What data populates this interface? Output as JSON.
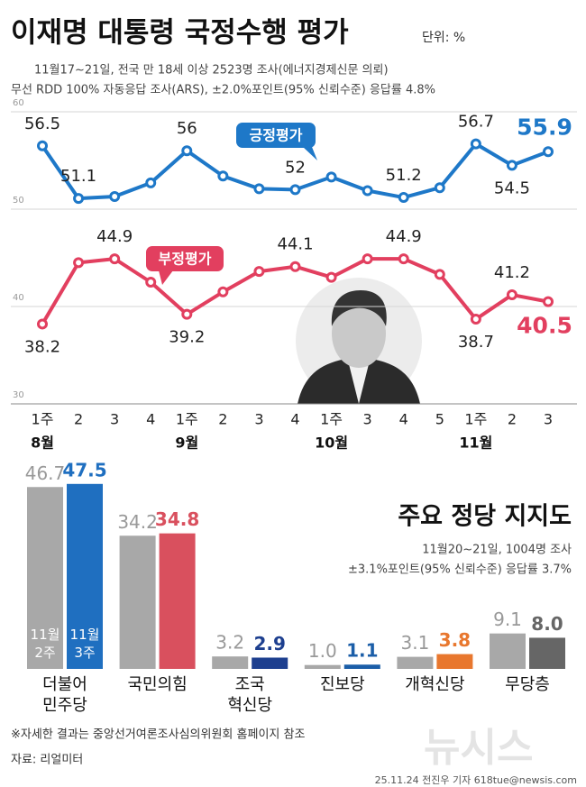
{
  "header": {
    "title": "이재명 대통령 국정수행 평가",
    "unit": "단위: %",
    "notes": [
      "11월17~21일, 전국 만 18세 이상 2523명 조사(에너지경제신문 의뢰)",
      "무선 RDD 100% 자동응답 조사(ARS), ±2.0%포인트(95% 신뢰수준) 응답률 4.8%"
    ]
  },
  "chart_data": [
    {
      "type": "line",
      "categories": [
        "1주",
        "2",
        "3",
        "4",
        "1주",
        "2",
        "3",
        "4",
        "1주",
        "3",
        "4",
        "5",
        "1주",
        "2",
        "3"
      ],
      "month_labels": [
        "8월",
        null,
        null,
        null,
        "9월",
        null,
        null,
        null,
        "10월",
        null,
        null,
        null,
        "11월",
        null,
        null
      ],
      "ylim": [
        30,
        60
      ],
      "yticks": [
        30,
        40,
        50,
        60
      ],
      "grid": true,
      "series": [
        {
          "name": "긍정평가",
          "color": "#1e78c8",
          "values": [
            56.5,
            51.1,
            51.3,
            52.7,
            56,
            53.4,
            52.1,
            52,
            53.3,
            51.9,
            51.2,
            52.2,
            56.7,
            54.5,
            55.9
          ],
          "value_labels": [
            "56.5",
            "51.1",
            null,
            null,
            "56",
            null,
            null,
            "52",
            null,
            null,
            "51.2",
            null,
            "56.7",
            "54.5",
            "55.9"
          ]
        },
        {
          "name": "부정평가",
          "color": "#e23f5f",
          "values": [
            38.2,
            44.5,
            44.9,
            42.5,
            39.2,
            41.5,
            43.6,
            44.1,
            43.0,
            44.9,
            44.9,
            43.3,
            38.7,
            41.2,
            40.5
          ],
          "value_labels": [
            "38.2",
            null,
            "44.9",
            null,
            "39.2",
            null,
            null,
            "44.1",
            null,
            null,
            "44.9",
            null,
            "38.7",
            "41.2",
            "40.5"
          ]
        }
      ]
    },
    {
      "type": "bar",
      "title": "주요 정당 지지도",
      "subtitle": [
        "11월20~21일, 1004명 조사",
        "±3.1%포인트(95% 신뢰수준) 응답률 3.7%"
      ],
      "categories": [
        "더불어 민주당",
        "국민의힘",
        "조국 혁신당",
        "진보당",
        "개혁신당",
        "무당층"
      ],
      "ylim": [
        0,
        50
      ],
      "series": [
        {
          "name": "11월 2주",
          "color": "#a8a8a8",
          "values": [
            46.7,
            34.2,
            3.2,
            1.0,
            3.1,
            9.1
          ],
          "value_labels": [
            "46.7",
            "34.2",
            "3.2",
            "1.0",
            "3.1",
            "9.1"
          ]
        },
        {
          "name": "11월 3주",
          "color": [
            "#1f6fc0",
            "#d9505e",
            "#1d3f8f",
            "#1b5ea8",
            "#e8772e",
            "#666666"
          ],
          "values": [
            47.5,
            34.8,
            2.9,
            1.1,
            3.8,
            8.0
          ],
          "value_labels": [
            "47.5",
            "34.8",
            "2.9",
            "1.1",
            "3.8",
            "8.0"
          ]
        }
      ]
    }
  ],
  "footer": {
    "note": "※자세한 결과는 중앙선거여론조사심의위원회 홈페이지 참조",
    "source": "자료: 리얼미터",
    "credit": "25.11.24 전진우 기자 618tue@newsis.com",
    "logo": "뉴시스"
  }
}
